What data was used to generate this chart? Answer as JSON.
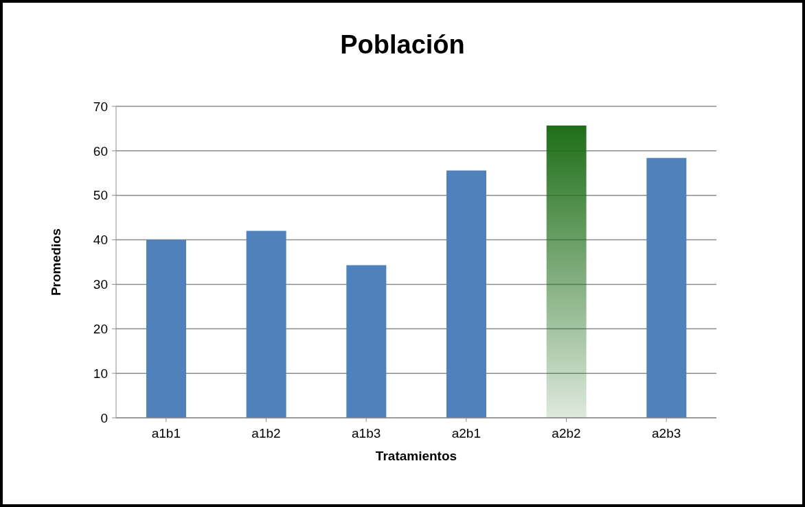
{
  "chart_data": {
    "type": "bar",
    "title": "Población",
    "xlabel": "Tratamientos",
    "ylabel": "Promedios",
    "categories": [
      "a1b1",
      "a1b2",
      "a1b3",
      "a2b1",
      "a2b2",
      "a2b3"
    ],
    "values": [
      40,
      42,
      34.3,
      55.6,
      65.7,
      58.4
    ],
    "colors": [
      "#4f81bd",
      "#4f81bd",
      "#4f81bd",
      "#4f81bd",
      "#1e6e18",
      "#4f81bd"
    ],
    "ylim": [
      0,
      70
    ],
    "yticks": [
      0,
      10,
      20,
      30,
      40,
      50,
      60,
      70
    ],
    "grid": "y"
  }
}
